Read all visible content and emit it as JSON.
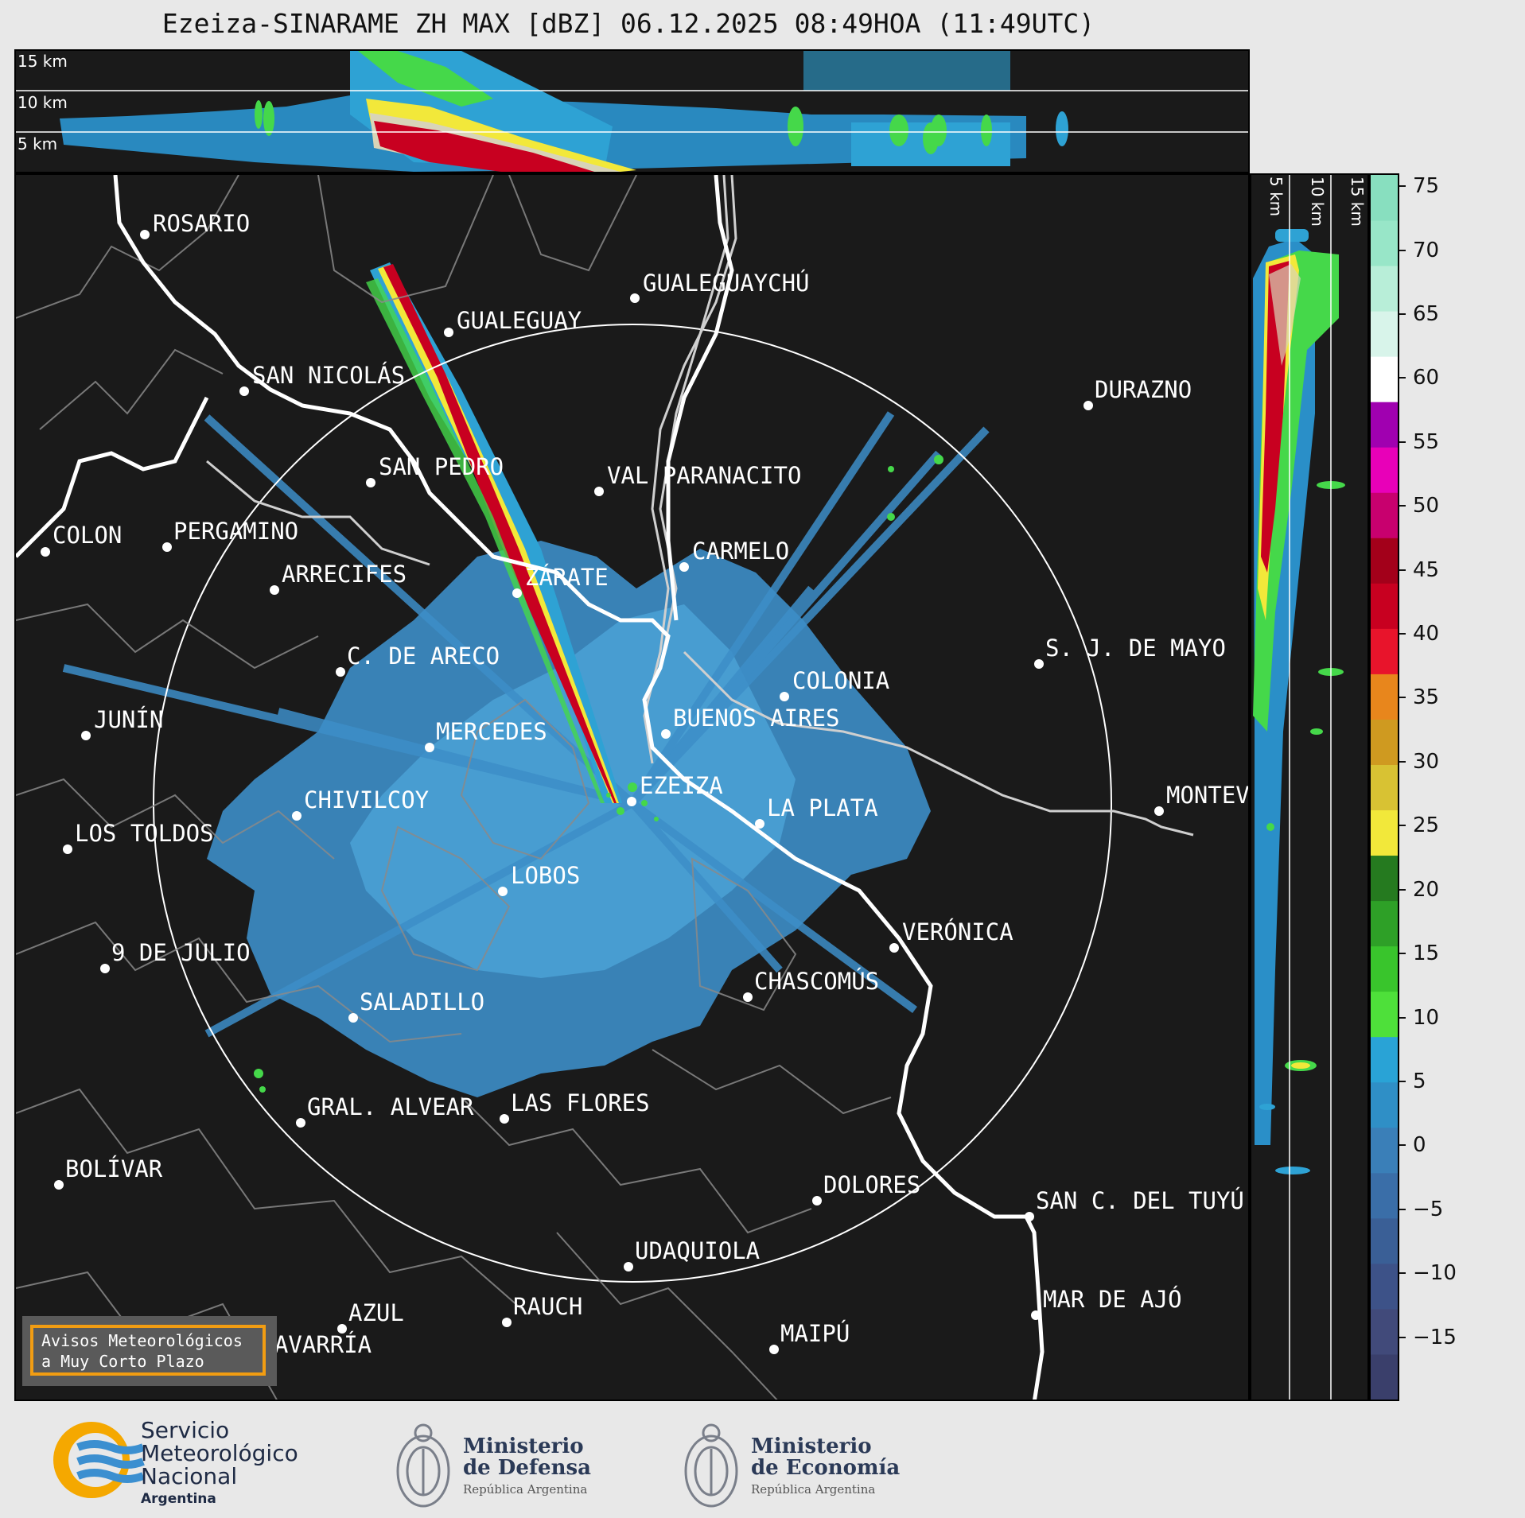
{
  "title": "Ezeiza-SINARAME ZH MAX [dBZ] 06.12.2025 08:49HOA (11:49UTC)",
  "top_altitudes": [
    "15 km",
    "10 km",
    "5 km"
  ],
  "side_altitudes": [
    "5 km",
    "10 km",
    "15 km"
  ],
  "cities": [
    {
      "name": "ROSARIO"
    },
    {
      "name": "GUALEGUAYCHÚ"
    },
    {
      "name": "GUALEGUAY"
    },
    {
      "name": "SAN NICOLÁS"
    },
    {
      "name": "DURAZNO"
    },
    {
      "name": "SAN PEDRO"
    },
    {
      "name": "VAL PARANACITO"
    },
    {
      "name": "COLON"
    },
    {
      "name": "PERGAMINO"
    },
    {
      "name": "CARMELO"
    },
    {
      "name": "ARRECIFES"
    },
    {
      "name": "ZÁRATE"
    },
    {
      "name": "S. J. DE MAYO"
    },
    {
      "name": "C. DE ARECO"
    },
    {
      "name": "COLONIA"
    },
    {
      "name": "JUNÍN"
    },
    {
      "name": "BUENOS AIRES"
    },
    {
      "name": "MERCEDES"
    },
    {
      "name": "EZEIZA"
    },
    {
      "name": "MONTEVIDEO"
    },
    {
      "name": "CHIVILCOY"
    },
    {
      "name": "LA PLATA"
    },
    {
      "name": "LOS TOLDOS"
    },
    {
      "name": "LOBOS"
    },
    {
      "name": "VERÓNICA"
    },
    {
      "name": "9 DE JULIO"
    },
    {
      "name": "CHASCOMÚS"
    },
    {
      "name": "SALADILLO"
    },
    {
      "name": "GRAL. ALVEAR"
    },
    {
      "name": "LAS FLORES"
    },
    {
      "name": "BOLÍVAR"
    },
    {
      "name": "DOLORES"
    },
    {
      "name": "SAN C. DEL TUYÚ"
    },
    {
      "name": "UDAQUIOLA"
    },
    {
      "name": "MAR DE AJÓ"
    },
    {
      "name": "AZUL"
    },
    {
      "name": "RAUCH"
    },
    {
      "name": "OLAVARRÍA"
    },
    {
      "name": "MAIPÚ"
    }
  ],
  "colorbar": {
    "unit": "dBZ",
    "ticks": [
      "75",
      "70",
      "65",
      "60",
      "55",
      "50",
      "45",
      "40",
      "35",
      "30",
      "25",
      "20",
      "15",
      "10",
      "5",
      "0",
      "−5",
      "−10",
      "−15"
    ],
    "range": [
      -20,
      76
    ],
    "colors": [
      "#3a3f6b",
      "#414a7a",
      "#3d5288",
      "#3a5f96",
      "#3a6ea8",
      "#3a7fb8",
      "#2f8fc6",
      "#29a3d6",
      "#4ee03a",
      "#39c52c",
      "#2ea027",
      "#257a1f",
      "#f2e83a",
      "#d8c233",
      "#cf9a20",
      "#e8861c",
      "#e8142b",
      "#c80020",
      "#a3001a",
      "#c8006e",
      "#e800b8",
      "#a000b0",
      "#ffffff",
      "#d8f4ea",
      "#b8eed8",
      "#98e6c8",
      "#88dfbf"
    ]
  },
  "notice": {
    "line1": "Avisos Meteorológicos",
    "line2": "a Muy Corto Plazo"
  },
  "logos": {
    "smn": {
      "line1": "Servicio",
      "line2": "Meteorológico",
      "line3": "Nacional",
      "line4": "Argentina"
    },
    "defensa": {
      "line1": "Ministerio",
      "line2": "de Defensa",
      "line3": "República Argentina"
    },
    "economia": {
      "line1": "Ministerio",
      "line2": "de Economía",
      "line3": "República Argentina"
    }
  }
}
